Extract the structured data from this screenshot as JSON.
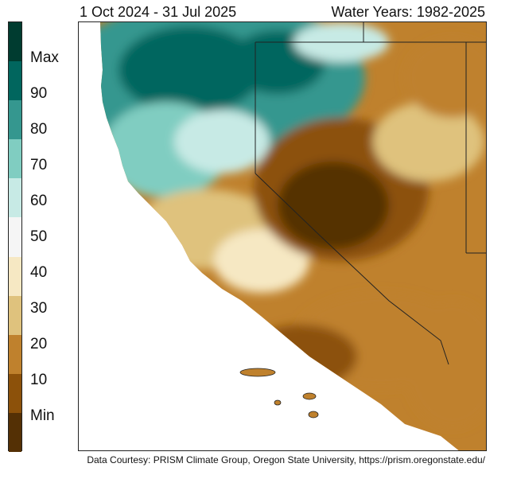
{
  "header": {
    "date_range": "1 Oct 2024 - 31 Jul 2025",
    "period": "Water Years: 1982-2025"
  },
  "legend": {
    "colors": [
      "#003c30",
      "#01665e",
      "#35978f",
      "#80cdc1",
      "#c7eae5",
      "#f5f5f5",
      "#f6e8c3",
      "#dfc27d",
      "#bf812d",
      "#8c510a",
      "#543005"
    ],
    "labels": [
      "Max",
      "90",
      "80",
      "70",
      "60",
      "50",
      "40",
      "30",
      "20",
      "10",
      "Min"
    ]
  },
  "map": {
    "land_color": "#bf812d",
    "ocean_color": "#ffffff",
    "border_color": "#222222"
  },
  "footer": {
    "credit": "Data Courtesy: PRISM Climate Group, Oregon State University, https://prism.oregonstate.edu/"
  }
}
